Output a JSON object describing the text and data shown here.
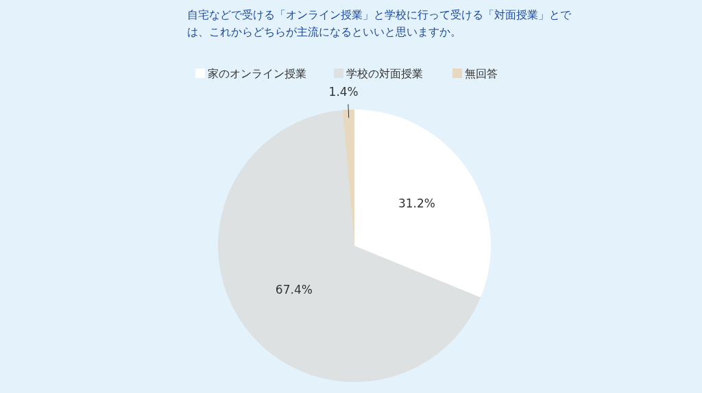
{
  "chart_data": {
    "type": "pie",
    "title": "自宅などで受ける「オンライン授業」と学校に行って受ける「対面授業」とでは、これからどちらが主流になるといいと思いますか。",
    "categories": [
      "家のオンライン授業",
      "学校の対面授業",
      "無回答"
    ],
    "values": [
      31.2,
      67.4,
      1.4
    ],
    "colors": [
      "#ffffff",
      "#dde1e1",
      "#e8d8bf"
    ],
    "value_labels": [
      "31.2%",
      "67.4%",
      "1.4%"
    ],
    "legend": "top"
  }
}
